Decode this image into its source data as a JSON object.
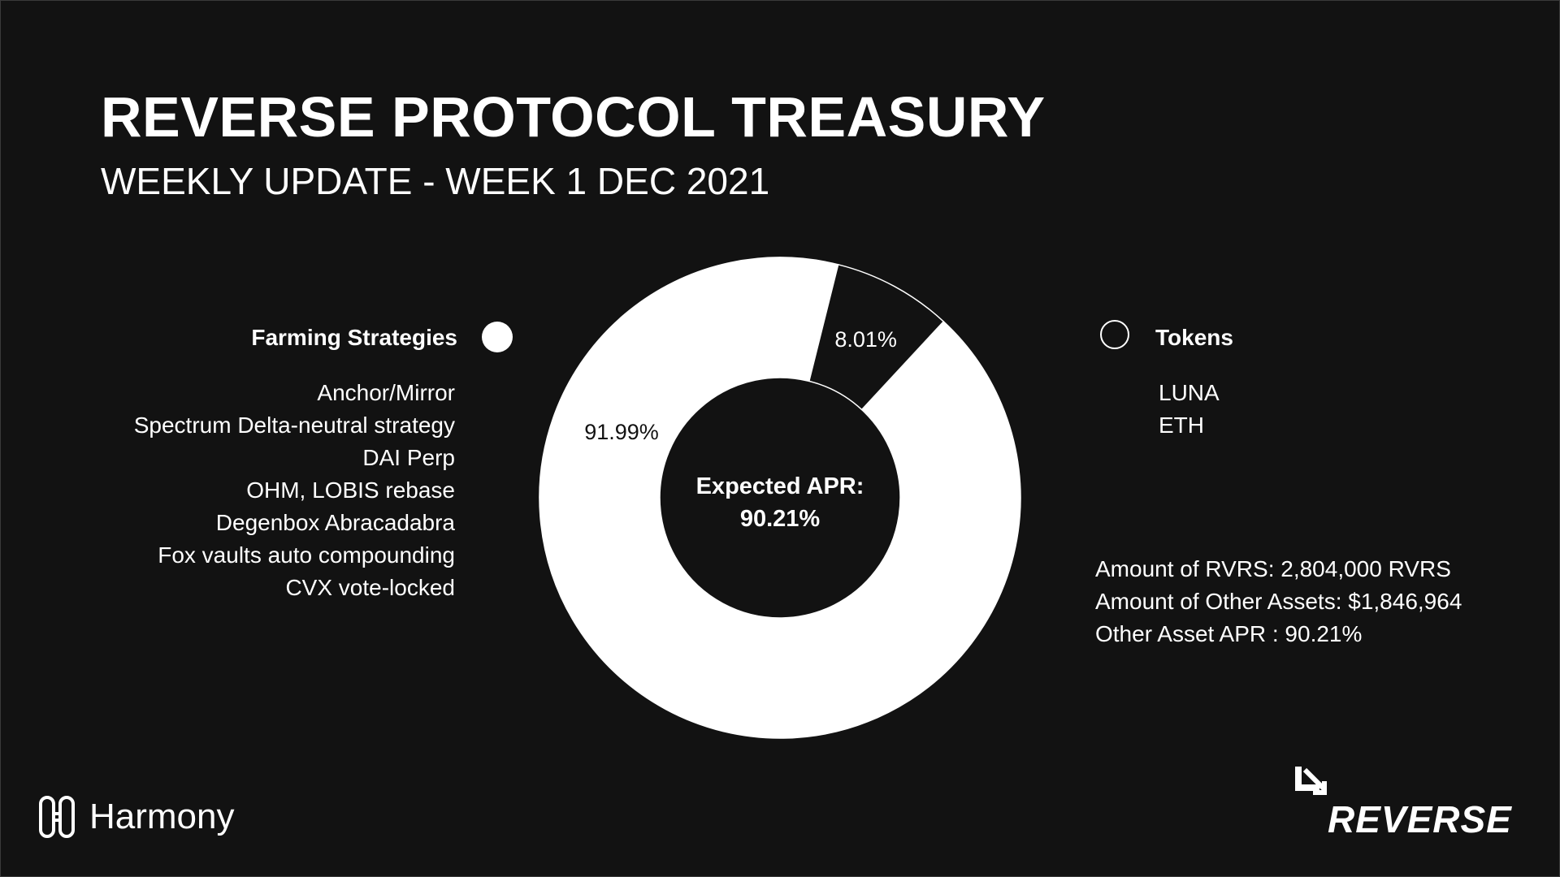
{
  "title": "REVERSE PROTOCOL TREASURY",
  "subtitle": "WEEKLY UPDATE - WEEK 1 DEC 2021",
  "legend": {
    "farming_title": "Farming Strategies",
    "tokens_title": "Tokens"
  },
  "strategies": [
    "Anchor/Mirror",
    "Spectrum Delta-neutral strategy",
    "DAI Perp",
    "OHM, LOBIS rebase",
    "Degenbox Abracadabra",
    "Fox vaults auto compounding",
    "CVX vote-locked"
  ],
  "tokens": [
    "LUNA",
    "ETH"
  ],
  "stats": {
    "rvrs": "Amount of RVRS: 2,804,000 RVRS",
    "other_assets": "Amount of Other Assets: $1,846,964",
    "other_apr": "Other Asset APR : 90.21%"
  },
  "chart_data": {
    "type": "pie",
    "categories": [
      "Farming Strategies",
      "Tokens"
    ],
    "values": [
      91.99,
      8.01
    ],
    "labels": [
      "91.99%",
      "8.01%"
    ],
    "center_label_line1": "Expected APR:",
    "center_label_line2": "90.21%",
    "colors": [
      "#ffffff",
      "#121212"
    ]
  },
  "logos": {
    "harmony": "Harmony",
    "reverse": "REVERSE"
  },
  "colors": {
    "background": "#121212",
    "foreground": "#ffffff"
  }
}
